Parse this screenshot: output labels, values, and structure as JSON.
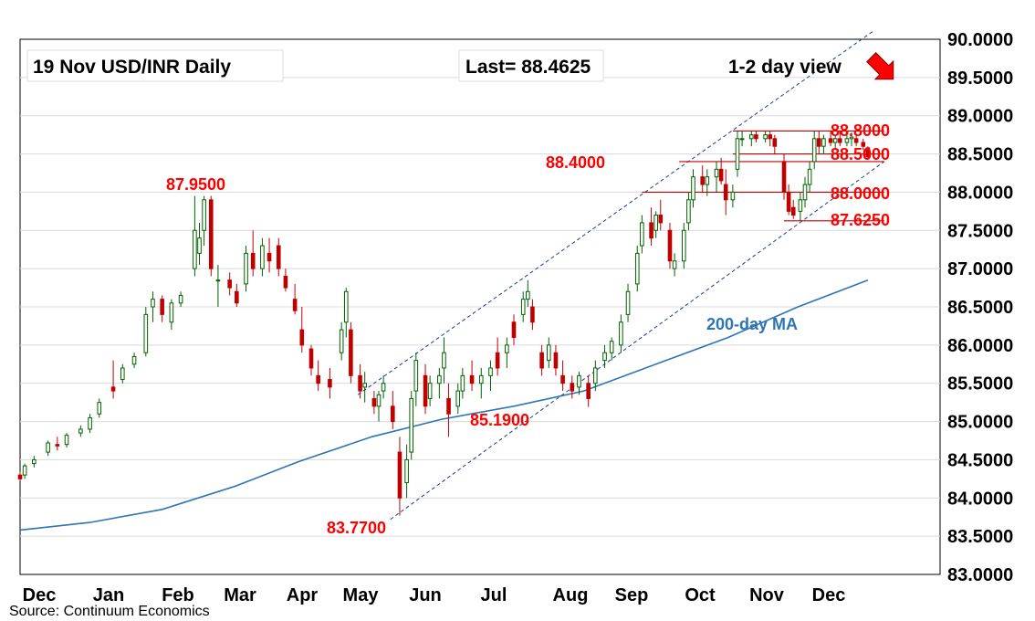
{
  "header": {
    "title": "19 Nov  USD/INR  Daily",
    "last": "Last= 88.4625",
    "view": "1-2 day view",
    "source": "Source: Continuum Economics"
  },
  "colors": {
    "up_candle": "#006100",
    "down_candle": "#c00000",
    "ma": "#2e75b6",
    "channel": "#1f3a93",
    "level": "#c00000",
    "label": "#ff0000",
    "arrow": "#ff0000"
  },
  "chart_data": {
    "type": "candlestick",
    "x_tick_labels": [
      "Dec",
      "Jan",
      "Feb",
      "Mar",
      "Apr",
      "May",
      "Jun",
      "Jul",
      "Aug",
      "Sep",
      "Oct",
      "Nov",
      "Dec"
    ],
    "y_ticks": [
      "83.0000",
      "83.5000",
      "84.0000",
      "84.5000",
      "85.0000",
      "85.5000",
      "86.0000",
      "86.5000",
      "87.0000",
      "87.5000",
      "88.0000",
      "88.5000",
      "89.0000",
      "89.5000",
      "90.0000"
    ],
    "ylim": [
      83.0,
      90.0
    ],
    "grid": true,
    "series": [
      {
        "name": "200-day MA",
        "points": [
          [
            "2024-11-20",
            83.58
          ],
          [
            "2024-12-20",
            83.68
          ],
          [
            "2025-01-20",
            83.85
          ],
          [
            "2025-02-20",
            84.15
          ],
          [
            "2025-03-20",
            84.48
          ],
          [
            "2025-04-20",
            84.8
          ],
          [
            "2025-05-20",
            85.03
          ],
          [
            "2025-06-20",
            85.2
          ],
          [
            "2025-07-20",
            85.4
          ],
          [
            "2025-08-20",
            85.75
          ],
          [
            "2025-09-20",
            86.1
          ],
          [
            "2025-10-20",
            86.5
          ],
          [
            "2025-11-19",
            86.85
          ]
        ]
      }
    ],
    "levels": [
      {
        "value": 88.8,
        "label": "88.8000",
        "from": "2025-09-22",
        "to": "2025-11-26"
      },
      {
        "value": 88.5,
        "label": "88.5000",
        "from": "2025-09-22",
        "to": "2025-11-26"
      },
      {
        "value": 88.4,
        "label": "88.4000",
        "from": "2025-08-30",
        "to": "2025-11-26"
      },
      {
        "value": 88.0,
        "label": "88.0000",
        "from": "2025-08-14",
        "to": "2025-11-26"
      },
      {
        "value": 87.625,
        "label": "87.6250",
        "from": "2025-10-14",
        "to": "2025-11-26"
      }
    ],
    "channel": {
      "upper": [
        [
          "2025-04-14",
          85.35
        ],
        [
          "2025-11-21",
          90.1
        ]
      ],
      "lower": [
        [
          "2025-04-28",
          83.72
        ],
        [
          "2025-11-26",
          88.4
        ]
      ]
    },
    "annotations": [
      {
        "text": "87.9500",
        "date": "2025-02-03",
        "value": 87.95
      },
      {
        "text": "83.7700",
        "date": "2025-05-02",
        "value": 83.77
      },
      {
        "text": "85.1900",
        "date": "2025-07-22",
        "value": 85.19
      },
      {
        "text": "200-day MA",
        "date": "2025-10-30",
        "value": 86.5
      }
    ],
    "ohlc_daily": [
      [
        "2024-11-20",
        84.3,
        84.35,
        84.22,
        84.25
      ],
      [
        "2024-11-22",
        84.3,
        84.45,
        84.25,
        84.42
      ],
      [
        "2024-11-26",
        84.45,
        84.55,
        84.4,
        84.5
      ],
      [
        "2024-12-02",
        84.6,
        84.75,
        84.55,
        84.72
      ],
      [
        "2024-12-06",
        84.7,
        84.8,
        84.62,
        84.68
      ],
      [
        "2024-12-10",
        84.7,
        84.85,
        84.66,
        84.82
      ],
      [
        "2024-12-16",
        84.85,
        84.95,
        84.8,
        84.9
      ],
      [
        "2024-12-20",
        84.9,
        85.1,
        84.85,
        85.05
      ],
      [
        "2024-12-24",
        85.1,
        85.3,
        85.05,
        85.25
      ],
      [
        "2024-12-30",
        85.45,
        85.8,
        85.3,
        85.4
      ],
      [
        "2025-01-03",
        85.55,
        85.75,
        85.5,
        85.7
      ],
      [
        "2025-01-08",
        85.75,
        85.9,
        85.7,
        85.85
      ],
      [
        "2025-01-13",
        85.9,
        86.5,
        85.85,
        86.4
      ],
      [
        "2025-01-16",
        86.5,
        86.7,
        86.3,
        86.6
      ],
      [
        "2025-01-20",
        86.6,
        86.65,
        86.3,
        86.4
      ],
      [
        "2025-01-24",
        86.3,
        86.6,
        86.2,
        86.55
      ],
      [
        "2025-01-28",
        86.55,
        86.7,
        86.5,
        86.65
      ],
      [
        "2025-02-03",
        87.0,
        87.95,
        86.9,
        87.5
      ],
      [
        "2025-02-05",
        87.2,
        87.6,
        87.05,
        87.4
      ],
      [
        "2025-02-07",
        87.5,
        87.95,
        87.3,
        87.9
      ],
      [
        "2025-02-10",
        87.9,
        87.95,
        86.9,
        87.0
      ],
      [
        "2025-02-13",
        86.85,
        87.05,
        86.5,
        86.85
      ],
      [
        "2025-02-18",
        86.85,
        86.95,
        86.65,
        86.75
      ],
      [
        "2025-02-21",
        86.7,
        86.8,
        86.5,
        86.55
      ],
      [
        "2025-02-25",
        86.8,
        87.3,
        86.7,
        87.2
      ],
      [
        "2025-02-28",
        87.2,
        87.5,
        86.9,
        87.0
      ],
      [
        "2025-03-04",
        87.0,
        87.4,
        86.9,
        87.3
      ],
      [
        "2025-03-07",
        87.2,
        87.4,
        86.95,
        87.1
      ],
      [
        "2025-03-11",
        87.3,
        87.4,
        86.9,
        87.0
      ],
      [
        "2025-03-14",
        86.9,
        87.0,
        86.7,
        86.75
      ],
      [
        "2025-03-18",
        86.6,
        86.8,
        86.4,
        86.45
      ],
      [
        "2025-03-21",
        86.2,
        86.5,
        85.9,
        86.0
      ],
      [
        "2025-03-25",
        85.95,
        86.0,
        85.6,
        85.7
      ],
      [
        "2025-03-28",
        85.6,
        85.8,
        85.4,
        85.5
      ],
      [
        "2025-04-02",
        85.55,
        85.7,
        85.3,
        85.45
      ],
      [
        "2025-04-07",
        85.9,
        86.3,
        85.8,
        86.2
      ],
      [
        "2025-04-09",
        86.3,
        86.75,
        86.1,
        86.7
      ],
      [
        "2025-04-11",
        86.2,
        86.3,
        85.5,
        85.6
      ],
      [
        "2025-04-15",
        85.6,
        85.75,
        85.3,
        85.4
      ],
      [
        "2025-04-17",
        85.45,
        85.65,
        85.25,
        85.5
      ],
      [
        "2025-04-21",
        85.3,
        85.4,
        85.1,
        85.2
      ],
      [
        "2025-04-23",
        85.2,
        85.4,
        85.0,
        85.35
      ],
      [
        "2025-04-25",
        85.4,
        85.6,
        85.3,
        85.5
      ],
      [
        "2025-04-29",
        85.2,
        85.4,
        84.9,
        85.0
      ],
      [
        "2025-05-02",
        84.6,
        84.8,
        83.77,
        84.0
      ],
      [
        "2025-05-05",
        84.2,
        84.7,
        84.0,
        84.5
      ],
      [
        "2025-05-07",
        84.6,
        85.4,
        84.5,
        85.3
      ],
      [
        "2025-05-09",
        85.4,
        85.9,
        85.2,
        85.8
      ],
      [
        "2025-05-13",
        85.6,
        85.75,
        85.1,
        85.2
      ],
      [
        "2025-05-15",
        85.3,
        85.6,
        85.2,
        85.5
      ],
      [
        "2025-05-19",
        85.5,
        85.7,
        85.3,
        85.6
      ],
      [
        "2025-05-21",
        85.7,
        86.1,
        85.5,
        85.9
      ],
      [
        "2025-05-23",
        85.3,
        85.5,
        84.8,
        85.1
      ],
      [
        "2025-05-27",
        85.2,
        85.5,
        85.1,
        85.4
      ],
      [
        "2025-05-29",
        85.4,
        85.7,
        85.3,
        85.6
      ],
      [
        "2025-06-02",
        85.6,
        85.8,
        85.4,
        85.5
      ],
      [
        "2025-06-06",
        85.5,
        85.7,
        85.3,
        85.6
      ],
      [
        "2025-06-10",
        85.6,
        85.8,
        85.4,
        85.7
      ],
      [
        "2025-06-13",
        85.9,
        86.1,
        85.6,
        85.7
      ],
      [
        "2025-06-17",
        85.9,
        86.1,
        85.7,
        86.0
      ],
      [
        "2025-06-20",
        86.3,
        86.4,
        86.0,
        86.1
      ],
      [
        "2025-06-24",
        86.4,
        86.7,
        86.3,
        86.6
      ],
      [
        "2025-06-26",
        86.6,
        86.85,
        86.5,
        86.7
      ],
      [
        "2025-06-28",
        86.5,
        86.6,
        86.2,
        86.3
      ],
      [
        "2025-07-02",
        85.9,
        86.0,
        85.6,
        85.7
      ],
      [
        "2025-07-05",
        85.8,
        86.1,
        85.7,
        86.0
      ],
      [
        "2025-07-08",
        85.9,
        86.0,
        85.6,
        85.7
      ],
      [
        "2025-07-11",
        85.6,
        85.8,
        85.4,
        85.5
      ],
      [
        "2025-07-15",
        85.5,
        85.6,
        85.3,
        85.4
      ],
      [
        "2025-07-18",
        85.45,
        85.65,
        85.35,
        85.6
      ],
      [
        "2025-07-22",
        85.5,
        85.6,
        85.19,
        85.3
      ],
      [
        "2025-07-25",
        85.5,
        85.8,
        85.4,
        85.7
      ],
      [
        "2025-07-29",
        85.8,
        86.0,
        85.7,
        85.9
      ],
      [
        "2025-08-01",
        85.9,
        86.1,
        85.8,
        86.05
      ],
      [
        "2025-08-05",
        86.0,
        86.4,
        85.9,
        86.3
      ],
      [
        "2025-08-08",
        86.4,
        86.8,
        86.3,
        86.7
      ],
      [
        "2025-08-12",
        86.8,
        87.3,
        86.7,
        87.2
      ],
      [
        "2025-08-14",
        87.3,
        87.7,
        87.2,
        87.6
      ],
      [
        "2025-08-18",
        87.6,
        87.8,
        87.3,
        87.4
      ],
      [
        "2025-08-20",
        87.5,
        87.75,
        87.4,
        87.7
      ],
      [
        "2025-08-22",
        87.7,
        87.9,
        87.5,
        87.6
      ],
      [
        "2025-08-26",
        87.5,
        87.6,
        87.0,
        87.1
      ],
      [
        "2025-08-28",
        87.0,
        87.2,
        86.9,
        87.1
      ],
      [
        "2025-09-01",
        87.1,
        87.6,
        87.0,
        87.5
      ],
      [
        "2025-09-03",
        87.6,
        88.0,
        87.5,
        87.9
      ],
      [
        "2025-09-05",
        87.9,
        88.3,
        87.8,
        88.2
      ],
      [
        "2025-09-09",
        88.2,
        88.35,
        88.0,
        88.1
      ],
      [
        "2025-09-11",
        88.1,
        88.3,
        87.95,
        88.2
      ],
      [
        "2025-09-15",
        88.2,
        88.4,
        88.0,
        88.3
      ],
      [
        "2025-09-17",
        88.3,
        88.45,
        88.1,
        88.15
      ],
      [
        "2025-09-19",
        88.1,
        88.3,
        87.7,
        87.9
      ],
      [
        "2025-09-22",
        87.9,
        88.1,
        87.8,
        88.0
      ],
      [
        "2025-09-24",
        88.3,
        88.8,
        88.2,
        88.7
      ],
      [
        "2025-09-26",
        88.7,
        88.8,
        88.6,
        88.7
      ],
      [
        "2025-09-30",
        88.7,
        88.8,
        88.6,
        88.75
      ],
      [
        "2025-10-02",
        88.75,
        88.8,
        88.65,
        88.7
      ],
      [
        "2025-10-06",
        88.7,
        88.8,
        88.65,
        88.75
      ],
      [
        "2025-10-08",
        88.75,
        88.8,
        88.6,
        88.7
      ],
      [
        "2025-10-10",
        88.7,
        88.75,
        88.5,
        88.6
      ],
      [
        "2025-10-14",
        88.4,
        88.5,
        87.9,
        88.0
      ],
      [
        "2025-10-16",
        88.0,
        88.1,
        87.7,
        87.75
      ],
      [
        "2025-10-18",
        87.8,
        87.9,
        87.65,
        87.7
      ],
      [
        "2025-10-21",
        87.75,
        88.0,
        87.625,
        87.9
      ],
      [
        "2025-10-23",
        87.9,
        88.2,
        87.8,
        88.1
      ],
      [
        "2025-10-25",
        88.1,
        88.4,
        88.0,
        88.3
      ],
      [
        "2025-10-27",
        88.4,
        88.8,
        88.3,
        88.7
      ],
      [
        "2025-10-29",
        88.7,
        88.8,
        88.5,
        88.6
      ],
      [
        "2025-10-31",
        88.6,
        88.75,
        88.5,
        88.7
      ],
      [
        "2025-11-03",
        88.7,
        88.8,
        88.6,
        88.65
      ],
      [
        "2025-11-05",
        88.65,
        88.75,
        88.55,
        88.7
      ],
      [
        "2025-11-07",
        88.7,
        88.8,
        88.6,
        88.65
      ],
      [
        "2025-11-10",
        88.65,
        88.75,
        88.6,
        88.7
      ],
      [
        "2025-11-12",
        88.7,
        88.78,
        88.6,
        88.72
      ],
      [
        "2025-11-14",
        88.7,
        88.75,
        88.6,
        88.65
      ],
      [
        "2025-11-17",
        88.65,
        88.7,
        88.55,
        88.6
      ],
      [
        "2025-11-19",
        88.58,
        88.6,
        88.44,
        88.4625
      ]
    ]
  }
}
